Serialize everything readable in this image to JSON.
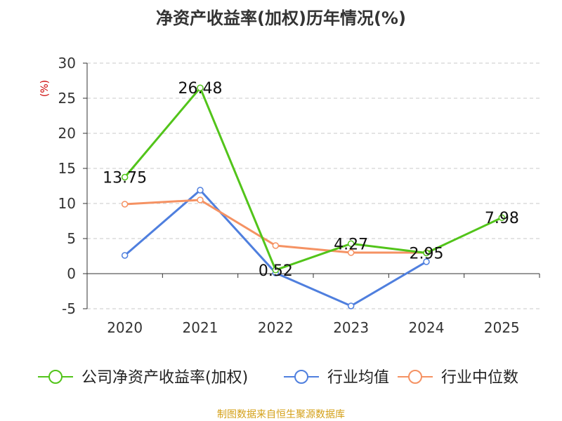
{
  "chart_data": {
    "type": "line",
    "title": "净资产收益率(加权)历年情况(%)",
    "ylabel": "(%)",
    "xlabel": "",
    "categories": [
      "2020",
      "2021",
      "2022",
      "2023",
      "2024",
      "2025"
    ],
    "ylim": [
      -5,
      30
    ],
    "yticks": [
      -5,
      0,
      5,
      10,
      15,
      20,
      25,
      30
    ],
    "grid": true,
    "legend_position": "bottom",
    "series": [
      {
        "name": "公司净资产收益率(加权)",
        "color": "#52c41a",
        "values": [
          13.75,
          26.48,
          0.52,
          4.27,
          2.95,
          7.98
        ],
        "labels": [
          "13.75",
          "26.48",
          "0.52",
          "4.27",
          "2.95",
          "7.98"
        ]
      },
      {
        "name": "行业均值",
        "color": "#4f7fde",
        "values": [
          2.6,
          11.9,
          0.1,
          -4.6,
          1.7,
          null
        ]
      },
      {
        "name": "行业中位数",
        "color": "#f59263",
        "values": [
          9.9,
          10.5,
          4.0,
          3.0,
          3.0,
          null
        ]
      }
    ],
    "source": "制图数据来自恒生聚源数据库"
  }
}
